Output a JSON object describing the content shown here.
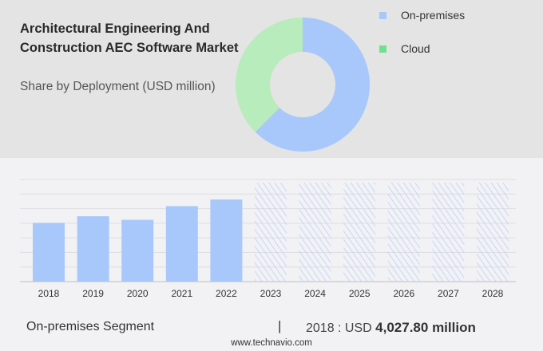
{
  "title": "Architectural Engineering And Construction AEC Software Market",
  "subtitle": "Share by Deployment (USD million)",
  "colors": {
    "on_premises": "#a8c8fc",
    "cloud": "#b8ecbc",
    "cloud_legend": "#6fe08d",
    "top_bg": "#e4e4e4",
    "bottom_bg": "#f2f2f4"
  },
  "chart_data": [
    {
      "type": "pie",
      "donut": true,
      "legend_position": "right",
      "labels": [
        "On-premises",
        "Cloud"
      ],
      "values": [
        62.5,
        37.5
      ]
    },
    {
      "type": "bar",
      "categories": [
        "2018",
        "2019",
        "2020",
        "2021",
        "2022",
        "2023",
        "2024",
        "2025",
        "2026",
        "2027",
        "2028"
      ],
      "values": [
        4027.8,
        4480,
        4235,
        5175,
        5630,
        null,
        null,
        null,
        null,
        null,
        null
      ],
      "forecast_years": [
        "2023",
        "2024",
        "2025",
        "2026",
        "2027",
        "2028"
      ],
      "forecast_style": "hatched",
      "ylim": [
        0,
        7000
      ],
      "grid": true,
      "y_tick_labels_shown": false
    }
  ],
  "footer": {
    "segment": "On-premises Segment",
    "separator": "|",
    "value_prefix": "2018 : USD",
    "value": "4,027.80 million",
    "site": "www.technavio.com"
  }
}
